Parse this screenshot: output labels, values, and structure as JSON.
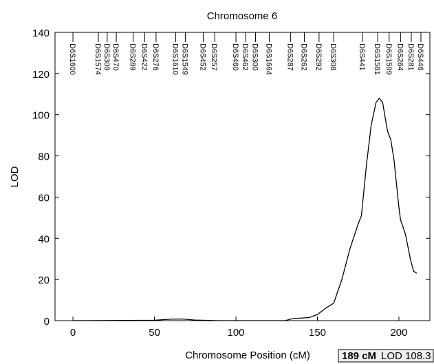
{
  "chart_data": {
    "type": "line",
    "title": "Chromosome 6",
    "xlabel": "Chromosome Position (cM)",
    "ylabel": "LOD",
    "x": [
      0,
      50,
      60,
      67,
      75,
      90,
      130,
      135,
      145,
      150,
      155,
      160,
      165,
      170,
      175,
      177,
      180,
      183,
      186,
      188,
      190,
      193,
      195,
      197,
      200,
      201,
      204,
      207,
      209,
      211
    ],
    "values": [
      0,
      0.2,
      0.7,
      0.8,
      0.3,
      0,
      0,
      1,
      1.5,
      3,
      6,
      8.5,
      20,
      35,
      47,
      51,
      75,
      95,
      106,
      108,
      106,
      92,
      88,
      78,
      55,
      49,
      42,
      30,
      24,
      23
    ],
    "color": "#000000",
    "xlim": [
      -11,
      219
    ],
    "ylim": [
      0,
      140
    ],
    "xticks": [
      0,
      50,
      100,
      150,
      200
    ],
    "yticks": [
      0,
      20,
      40,
      60,
      80,
      100,
      120,
      140
    ],
    "markers": [
      {
        "name": "D6S1600",
        "position": 0
      },
      {
        "name": "D6S1574",
        "position": 15.6
      },
      {
        "name": "D6S309",
        "position": 21
      },
      {
        "name": "D6S470",
        "position": 26.6
      },
      {
        "name": "D6S289",
        "position": 37
      },
      {
        "name": "D6S422",
        "position": 44
      },
      {
        "name": "D6S276",
        "position": 51
      },
      {
        "name": "D6S1610",
        "position": 63
      },
      {
        "name": "D6S1549",
        "position": 69
      },
      {
        "name": "D6S452",
        "position": 80
      },
      {
        "name": "D6S257",
        "position": 87
      },
      {
        "name": "D6S460",
        "position": 100
      },
      {
        "name": "D6S462",
        "position": 106
      },
      {
        "name": "D6S300",
        "position": 112
      },
      {
        "name": "D6S1664",
        "position": 120.5
      },
      {
        "name": "D6S287",
        "position": 133.6
      },
      {
        "name": "D6S262",
        "position": 142
      },
      {
        "name": "D6S292",
        "position": 151
      },
      {
        "name": "D6S308",
        "position": 160
      },
      {
        "name": "D6S441",
        "position": 177.6
      },
      {
        "name": "D6S1581",
        "position": 187
      },
      {
        "name": "D6S1599",
        "position": 194
      },
      {
        "name": "D6S264",
        "position": 201
      },
      {
        "name": "D6S281",
        "position": 207.6
      },
      {
        "name": "D6S446",
        "position": 213.5
      }
    ],
    "annotation": {
      "position_label": "189 cM",
      "lod_label": "LOD 108.3"
    }
  }
}
